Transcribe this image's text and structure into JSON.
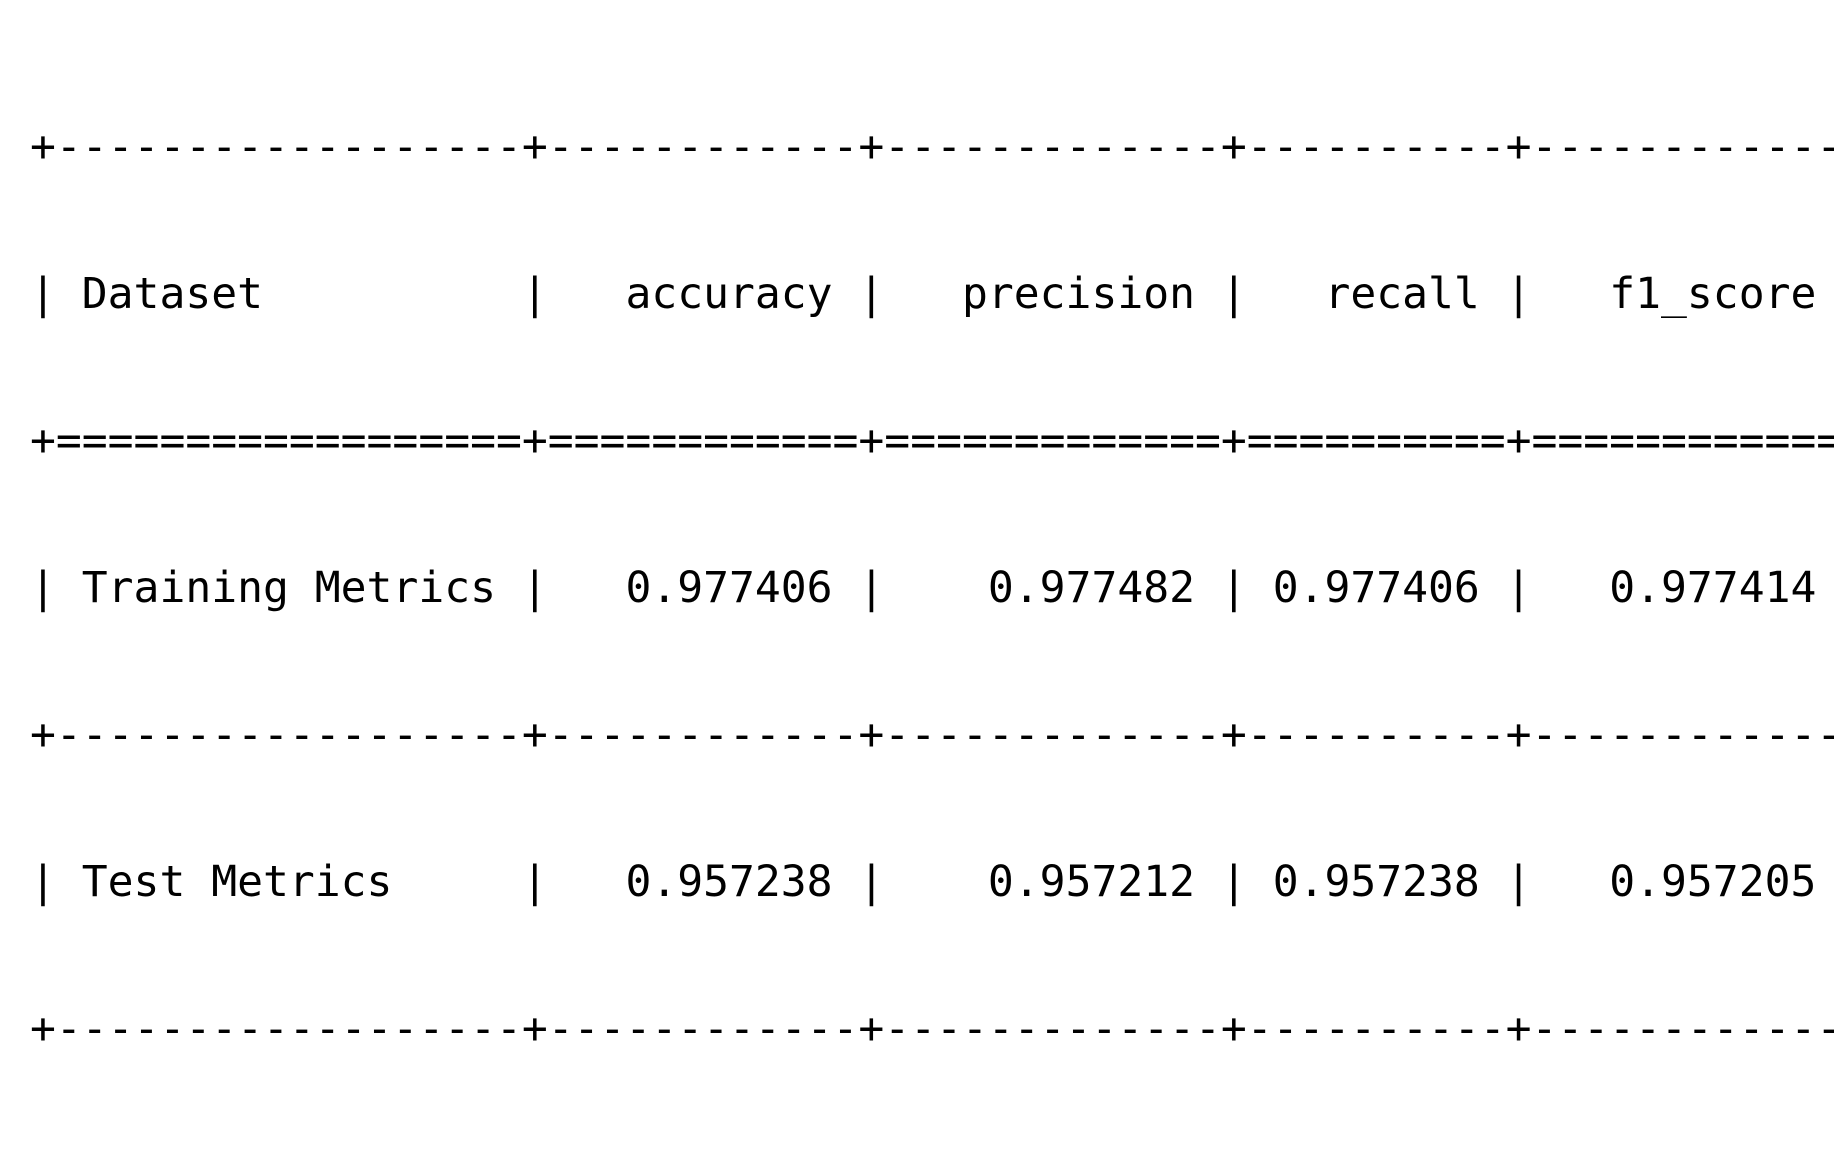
{
  "table": {
    "border_line": "+------------------+------------+-------------+----------+------------+",
    "header_separator": "+==================+============+=============+==========+============+",
    "headers": [
      "Dataset",
      "accuracy",
      "precision",
      "recall",
      "f1_score"
    ],
    "rows": [
      [
        "Training Metrics",
        "0.977406",
        "0.977482",
        "0.977406",
        "0.977414"
      ],
      [
        "Test Metrics",
        "0.957238",
        "0.957212",
        "0.957238",
        "0.957205"
      ]
    ]
  }
}
